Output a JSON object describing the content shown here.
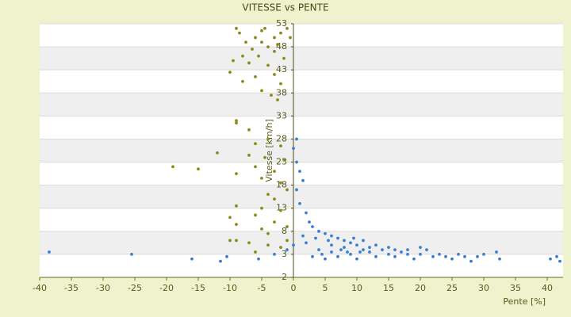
{
  "chart_data": {
    "type": "scatter",
    "title": "VITESSE vs PENTE",
    "x_label": "Pente [%]",
    "y_label": "Vitesse [km/h]",
    "xlim": [
      -40,
      42.5
    ],
    "ylim": [
      -2,
      53
    ],
    "xticks": [
      -40,
      -35,
      -30,
      -25,
      -20,
      -15,
      -10,
      -5,
      0,
      5,
      10,
      15,
      20,
      25,
      30,
      35,
      40
    ],
    "yticks": [
      -2,
      3,
      8,
      13,
      18,
      23,
      28,
      33,
      38,
      43,
      48,
      53
    ],
    "grid": true,
    "series": [
      {
        "color": "#8c8a1e",
        "x": [
          -9,
          -8.5,
          -5,
          -4.5,
          -2,
          -1,
          -3,
          -6,
          -7.5,
          -5,
          -0.5,
          -2.5,
          -4,
          -6.5,
          -3,
          -8,
          -5.5,
          -1.5,
          -9.5,
          -7,
          -4,
          -10,
          -3,
          -6,
          -8,
          -2,
          -5,
          -3.5,
          -2.5,
          -9,
          -9,
          -7,
          -4,
          -6,
          -2,
          -12,
          -7,
          -4.5,
          -1.5,
          -19,
          -15,
          -6,
          -3,
          -9,
          -5,
          -2,
          -1,
          -4,
          -3,
          -9,
          -5,
          -2,
          -10,
          -6,
          -3,
          -9,
          -5,
          -1,
          -4,
          -10,
          -9,
          -7,
          -4,
          -2,
          -1,
          -6
        ],
        "values": [
          52,
          51,
          51.5,
          52,
          51,
          52,
          50,
          50,
          49,
          49,
          50,
          48.5,
          48,
          47.5,
          47,
          46,
          46,
          45.5,
          45,
          44.5,
          44,
          42.5,
          42,
          41.5,
          40.5,
          40,
          38.5,
          37.5,
          36.5,
          32,
          31.5,
          30,
          28,
          27,
          26.5,
          25,
          24.5,
          24,
          23.5,
          22,
          21.5,
          22,
          21,
          20.5,
          19.5,
          18.5,
          17,
          16,
          15,
          13.5,
          13,
          12.5,
          11,
          11.5,
          10,
          9.5,
          8.5,
          9,
          7.5,
          6,
          6,
          5.5,
          5,
          4.5,
          6,
          3.5
        ]
      },
      {
        "color": "#3a7fd0",
        "x": [
          -38.5,
          -25.5,
          -16,
          -11.5,
          -10.5,
          -5.5,
          -3,
          -1,
          0,
          0.5,
          0,
          0.5,
          1,
          1.5,
          0.5,
          1,
          2,
          2.5,
          3,
          1.5,
          4,
          5,
          5.5,
          6,
          7,
          8,
          9,
          10,
          4,
          4.5,
          5,
          6,
          7,
          8,
          9,
          10,
          11,
          12,
          13,
          14,
          15,
          16,
          17,
          18,
          19,
          20,
          21,
          22,
          23,
          24,
          25,
          26,
          27,
          28,
          29,
          30,
          32,
          32.5,
          40.5,
          42,
          41.5,
          11,
          13,
          15,
          18,
          3,
          2,
          6,
          7.5,
          9.5,
          12,
          16,
          20,
          3.5,
          8.5,
          10.5
        ],
        "values": [
          3.5,
          3,
          2,
          1.5,
          2.5,
          2,
          3,
          4,
          5,
          28,
          26,
          23,
          21,
          19,
          17,
          14,
          12,
          10,
          9,
          7,
          8,
          7.5,
          6,
          7,
          6.5,
          6,
          5.5,
          5,
          4,
          3,
          2,
          3.5,
          2.5,
          4.5,
          3,
          2,
          4,
          3.5,
          2.5,
          4,
          3,
          2.5,
          3.5,
          3,
          2,
          3,
          4,
          2.5,
          3,
          2.5,
          2,
          3,
          2.5,
          1.5,
          2.5,
          3,
          3.5,
          2,
          2,
          1.5,
          2.5,
          6,
          5,
          4.5,
          4,
          2.5,
          5.5,
          5,
          4,
          6.5,
          4.5,
          4,
          4.5,
          6.5,
          3.5,
          3.5
        ]
      }
    ]
  }
}
